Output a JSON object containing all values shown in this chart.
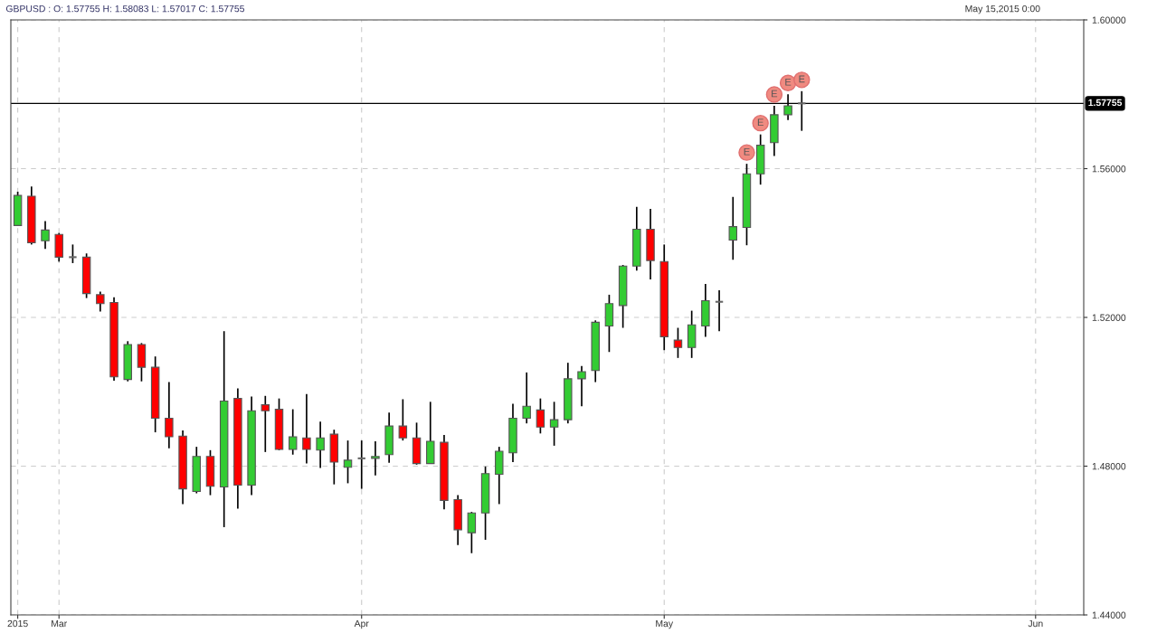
{
  "chart_data": {
    "type": "candlestick",
    "title": "GBPUSD : O: 1.57755 H: 1.58083 L: 1.57017 C: 1.57755",
    "subtitle": "May 15,2015 0:00",
    "categories": [
      "2015",
      null,
      null,
      "Mar",
      null,
      null,
      null,
      null,
      null,
      null,
      null,
      null,
      null,
      null,
      null,
      null,
      null,
      null,
      null,
      null,
      null,
      null,
      null,
      null,
      null,
      "Apr",
      null,
      null,
      null,
      null,
      null,
      null,
      null,
      null,
      null,
      null,
      null,
      null,
      null,
      null,
      null,
      null,
      null,
      null,
      null,
      null,
      null,
      "May",
      null,
      null,
      null,
      null,
      null,
      null,
      null,
      null,
      null,
      null,
      null,
      null,
      null,
      null,
      null,
      null,
      null,
      null,
      null,
      null,
      null,
      null,
      null,
      null,
      null,
      null,
      "Jun",
      null,
      null,
      null
    ],
    "ohlc": [
      [
        1.5447,
        1.5538,
        1.5447,
        1.5528
      ],
      [
        1.5526,
        1.5552,
        1.5396,
        1.5401
      ],
      [
        1.5406,
        1.5459,
        1.5384,
        1.5435
      ],
      [
        1.5423,
        1.5427,
        1.535,
        1.5362
      ],
      [
        1.5362,
        1.5396,
        1.5346,
        1.536
      ],
      [
        1.5362,
        1.5372,
        1.5252,
        1.5264
      ],
      [
        1.5261,
        1.5269,
        1.5216,
        1.5237
      ],
      [
        1.524,
        1.5254,
        1.503,
        1.504
      ],
      [
        1.5033,
        1.5136,
        1.5028,
        1.5127
      ],
      [
        1.5127,
        1.5131,
        1.5028,
        1.5066
      ],
      [
        1.5066,
        1.5095,
        1.4891,
        1.4929
      ],
      [
        1.4929,
        1.5026,
        1.4848,
        1.4879
      ],
      [
        1.4881,
        1.4896,
        1.4698,
        1.4739
      ],
      [
        1.4732,
        1.4852,
        1.4727,
        1.4826
      ],
      [
        1.4826,
        1.4843,
        1.4722,
        1.4746
      ],
      [
        1.4744,
        1.5163,
        1.4636,
        1.4975
      ],
      [
        1.4982,
        1.5009,
        1.4686,
        1.4749
      ],
      [
        1.4749,
        1.4987,
        1.4722,
        1.4949
      ],
      [
        1.4965,
        1.4989,
        1.4838,
        1.4949
      ],
      [
        1.4953,
        1.4982,
        1.4843,
        1.4845
      ],
      [
        1.4845,
        1.4953,
        1.4831,
        1.4879
      ],
      [
        1.4876,
        1.4994,
        1.4807,
        1.4845
      ],
      [
        1.4843,
        1.492,
        1.4795,
        1.4876
      ],
      [
        1.4886,
        1.4898,
        1.4751,
        1.4811
      ],
      [
        1.4797,
        1.4869,
        1.4754,
        1.4816
      ],
      [
        1.4821,
        1.4869,
        1.4739,
        1.4821
      ],
      [
        1.4821,
        1.4867,
        1.4775,
        1.4826
      ],
      [
        1.4831,
        1.4944,
        1.4809,
        1.4908
      ],
      [
        1.4908,
        1.498,
        1.4869,
        1.4876
      ],
      [
        1.4876,
        1.4917,
        1.4804,
        1.4807
      ],
      [
        1.4807,
        1.4973,
        1.4807,
        1.4867
      ],
      [
        1.4864,
        1.4884,
        1.4684,
        1.4708
      ],
      [
        1.471,
        1.4722,
        1.4588,
        1.4629
      ],
      [
        1.4621,
        1.4677,
        1.4566,
        1.4674
      ],
      [
        1.4674,
        1.4799,
        1.4602,
        1.478
      ],
      [
        1.4778,
        1.4852,
        1.4698,
        1.484
      ],
      [
        1.4836,
        1.4968,
        1.4811,
        1.4929
      ],
      [
        1.4929,
        1.5052,
        1.4915,
        1.4961
      ],
      [
        1.4951,
        1.4982,
        1.4888,
        1.4905
      ],
      [
        1.4905,
        1.4973,
        1.4855,
        1.4925
      ],
      [
        1.4925,
        1.5078,
        1.4915,
        1.5035
      ],
      [
        1.5035,
        1.5069,
        1.4961,
        1.5054
      ],
      [
        1.5057,
        1.5192,
        1.5026,
        1.5187
      ],
      [
        1.5177,
        1.5261,
        1.5107,
        1.5237
      ],
      [
        1.5232,
        1.5341,
        1.5172,
        1.5338
      ],
      [
        1.5338,
        1.5497,
        1.5326,
        1.5437
      ],
      [
        1.5437,
        1.5492,
        1.5302,
        1.5353
      ],
      [
        1.535,
        1.5396,
        1.5112,
        1.5148
      ],
      [
        1.5139,
        1.5172,
        1.5091,
        1.5119
      ],
      [
        1.5119,
        1.5218,
        1.5091,
        1.518
      ],
      [
        1.5177,
        1.529,
        1.5148,
        1.5245
      ],
      [
        1.5242,
        1.5273,
        1.5163,
        1.5242
      ],
      [
        1.5408,
        1.5524,
        1.5355,
        1.5444
      ],
      [
        1.5442,
        1.5613,
        1.5394,
        1.5586
      ],
      [
        1.5586,
        1.5692,
        1.5557,
        1.5663
      ],
      [
        1.567,
        1.5769,
        1.5634,
        1.5745
      ],
      [
        1.5745,
        1.58,
        1.5731,
        1.5769
      ],
      [
        1.57755,
        1.58083,
        1.57017,
        1.57755
      ],
      null,
      null,
      null,
      null,
      null,
      null,
      null,
      null,
      null,
      null,
      null,
      null,
      null,
      null,
      null,
      null,
      null,
      null,
      null,
      null
    ],
    "colors": [
      "#33cc33",
      "#ff0000",
      "#33cc33",
      "#ff0000",
      "#666666",
      "#ff0000",
      "#ff0000",
      "#ff0000",
      "#33cc33",
      "#ff0000",
      "#ff0000",
      "#ff0000",
      "#ff0000",
      "#33cc33",
      "#ff0000",
      "#33cc33",
      "#ff0000",
      "#33cc33",
      "#ff0000",
      "#ff0000",
      "#33cc33",
      "#ff0000",
      "#33cc33",
      "#ff0000",
      "#33cc33",
      "#666666",
      "#33cc33",
      "#33cc33",
      "#ff0000",
      "#ff0000",
      "#33cc33",
      "#ff0000",
      "#ff0000",
      "#33cc33",
      "#33cc33",
      "#33cc33",
      "#33cc33",
      "#33cc33",
      "#ff0000",
      "#33cc33",
      "#33cc33",
      "#33cc33",
      "#33cc33",
      "#33cc33",
      "#33cc33",
      "#33cc33",
      "#ff0000",
      "#ff0000",
      "#ff0000",
      "#33cc33",
      "#33cc33",
      "#666666",
      "#33cc33",
      "#33cc33",
      "#33cc33",
      "#33cc33",
      "#33cc33",
      "#666666",
      null,
      null,
      null,
      null,
      null,
      null,
      null,
      null,
      null,
      null,
      null,
      null,
      null,
      null,
      null,
      null,
      null,
      null,
      null,
      null
    ],
    "ylim": [
      1.44,
      1.6
    ],
    "yticks": [
      {
        "value": 1.44,
        "label": "1.44000"
      },
      {
        "value": 1.48,
        "label": "1.48000"
      },
      {
        "value": 1.52,
        "label": "1.52000"
      },
      {
        "value": 1.56,
        "label": "1.56000"
      },
      {
        "value": 1.6,
        "label": "1.60000"
      }
    ],
    "grid": true,
    "ref_lines": [
      {
        "axis": "y",
        "value": 1.57755,
        "label": "1.57755",
        "color": "#000000"
      }
    ],
    "annotations": [
      "E",
      "E",
      "E",
      "E",
      "E"
    ]
  }
}
